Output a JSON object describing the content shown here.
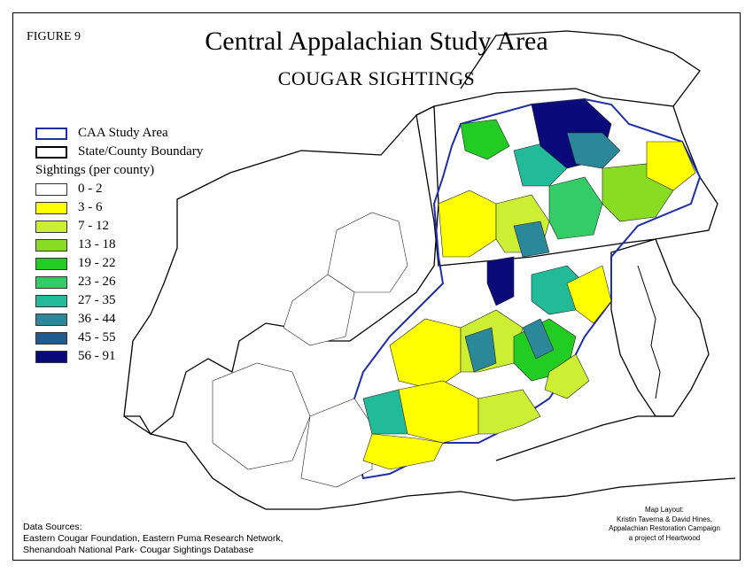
{
  "figure_label": "FIGURE 9",
  "title": "Central Appalachian Study Area",
  "subtitle": "COUGAR SIGHTINGS",
  "legend": {
    "study_area": "CAA Study Area",
    "boundary": "State/County Boundary",
    "heading": "Sightings (per county)",
    "classes": [
      {
        "label": "0 - 2",
        "color": "#ffffff"
      },
      {
        "label": "3 - 6",
        "color": "#ffff00"
      },
      {
        "label": "7 - 12",
        "color": "#ccee33"
      },
      {
        "label": "13 - 18",
        "color": "#88dd22"
      },
      {
        "label": "19 - 22",
        "color": "#22cc22"
      },
      {
        "label": "23 - 26",
        "color": "#33cc66"
      },
      {
        "label": "27 - 35",
        "color": "#22bb99"
      },
      {
        "label": "36 - 44",
        "color": "#2a8899"
      },
      {
        "label": "45 - 55",
        "color": "#1f5b8e"
      },
      {
        "label": "56 - 91",
        "color": "#0a0a7a"
      }
    ],
    "study_area_color": "#1e2fa8",
    "boundary_color": "#000000"
  },
  "sources": {
    "heading": "Data Sources:",
    "line1": "Eastern Cougar Foundation, Eastern Puma Research Network,",
    "line2": "Shenandoah National Park- Cougar Sightings Database"
  },
  "layout_credit": {
    "line1": "Map Layout:",
    "line2": "Kristin Taverna &  David Hines,",
    "line3": "Appalachian Restoration Campaign",
    "line4": "a project of Heartwood"
  }
}
